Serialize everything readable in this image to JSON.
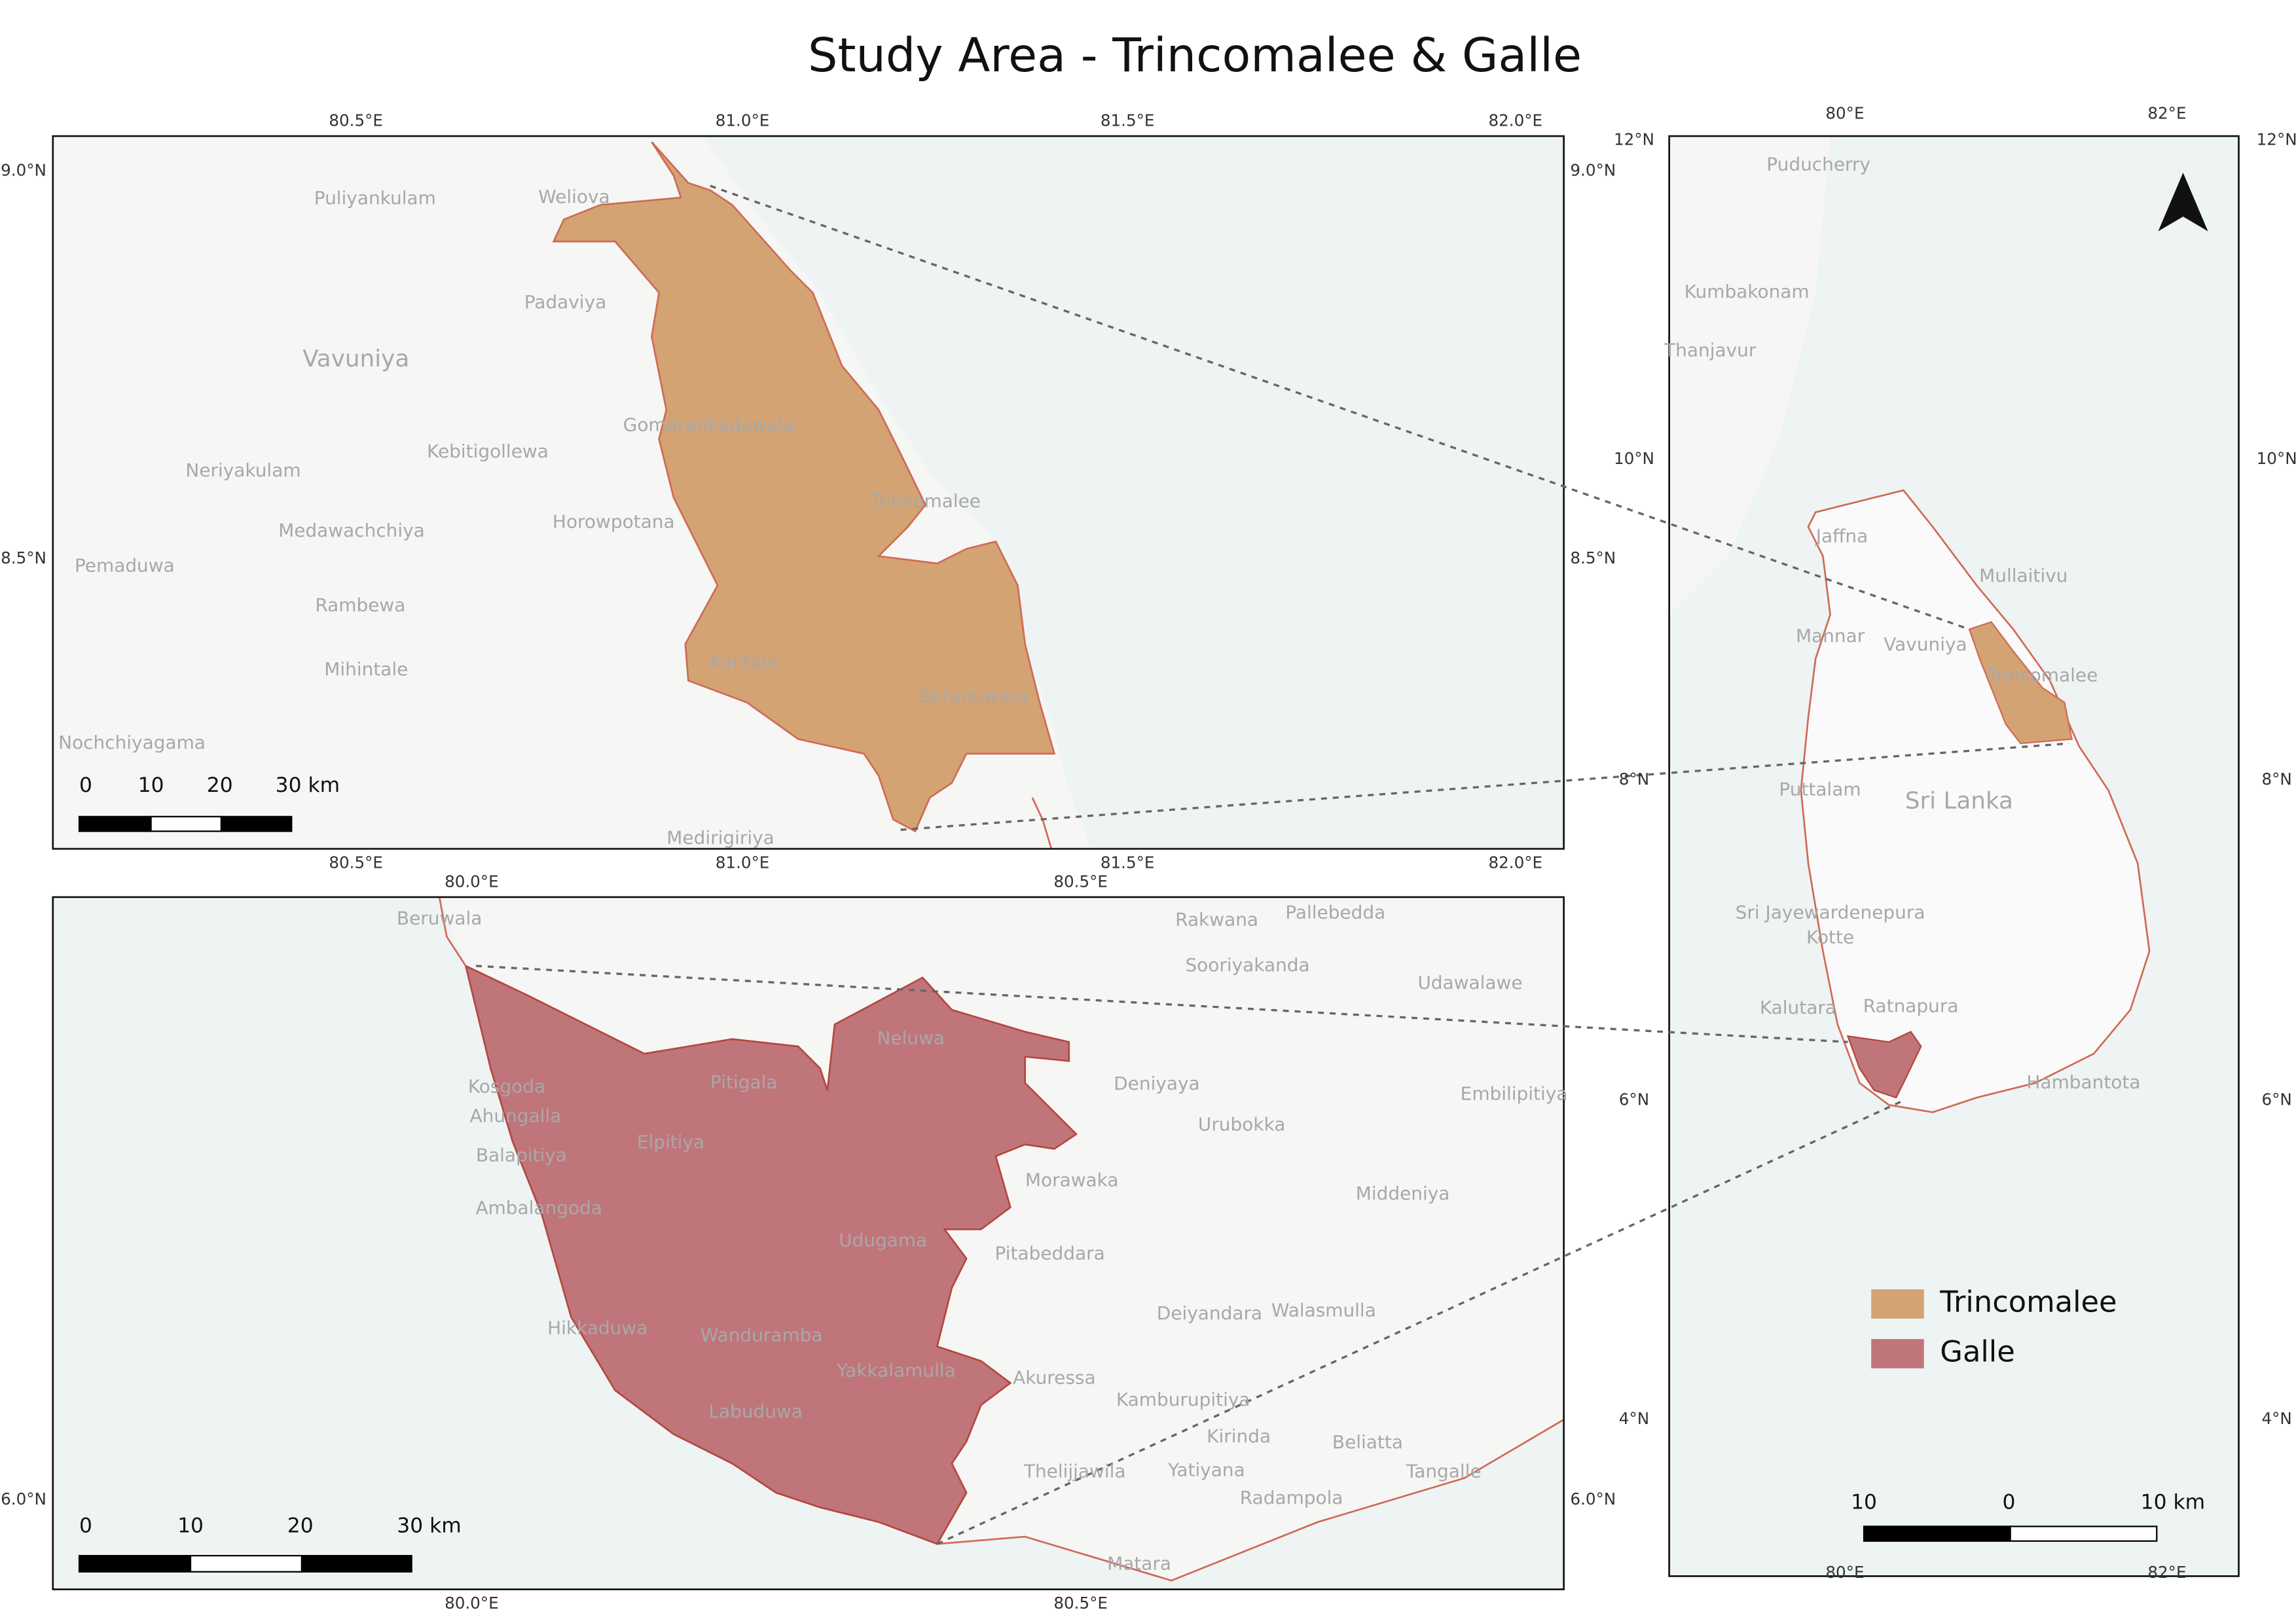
{
  "title": "Study Area - Trincomalee & Galle",
  "maps": [
    {
      "top_ticks": [
        "80.5°E",
        "81.0°E",
        "81.5°E",
        "82.0°E"
      ],
      "bottom_ticks": [
        "80.5°E",
        "81.0°E",
        "81.5°E",
        "82.0°E"
      ],
      "side_ticks": [
        "9.0°N",
        "8.5°N"
      ],
      "places": [
        "Puliyankulam",
        "Weliova",
        "Padaviya",
        "Vavuniya",
        "Gomarankadawala",
        "Kebitigollewa",
        "Neriyakulam",
        "Trincomalee",
        "Medawachchiya",
        "Horowpotana",
        "Pemaduwa",
        "Rambewa",
        "Mihintale",
        "Kantale",
        "Serunuwara",
        "Nochchiyagama",
        "Medirigiriya"
      ],
      "scale_bar": [
        "0",
        "10",
        "20",
        "30 km"
      ]
    },
    {
      "top_ticks": [
        "80.0°E",
        "80.5°E"
      ],
      "bottom_ticks": [
        "80.0°E",
        "80.5°E"
      ],
      "side_ticks": [
        "6.0°N"
      ],
      "places": [
        "Beruwala",
        "Rakwana",
        "Pallebedda",
        "Sooriyakanda",
        "Udawalawe",
        "Neluwa",
        "Pitigala",
        "Deniyaya",
        "Kosgoda",
        "Ahungalla",
        "Elpitiya",
        "Urubokka",
        "Balapitiya",
        "Morawaka",
        "Ambalangoda",
        "Udugama",
        "Pitabeddara",
        "Hikkaduwa",
        "Wanduramba",
        "Yakkalamulla",
        "Akuressa",
        "Labuduwa",
        "Deiyandara",
        "Walasmulla",
        "Kamburupitiya",
        "Kirinda",
        "Beliatta",
        "Thelijjawila",
        "Yatiyana",
        "Tangalle",
        "Radampola",
        "Matara",
        "Embilipitiya",
        "Middeniya"
      ],
      "scale_bar": [
        "0",
        "10",
        "20",
        "30 km"
      ]
    },
    {
      "top_ticks": [
        "80°E",
        "82°E"
      ],
      "bottom_ticks": [
        "80°E",
        "82°E"
      ],
      "side_ticks": [
        "12°N",
        "10°N",
        "8°N",
        "6°N",
        "4°N"
      ],
      "places": [
        "Puducherry",
        "Kumbakonam",
        "Thanjavur",
        "Jaffna",
        "Mullaitivu",
        "Mannar",
        "Vavuniya",
        "Trincomalee",
        "Puttalam",
        "Sri Lanka",
        "Sri Jayewardenepura",
        "Kotte",
        "Kalutara",
        "Ratnapura",
        "Hambantota"
      ],
      "scale_bar": [
        "10",
        "0",
        "10 km"
      ]
    }
  ],
  "legend": [
    {
      "label": "Trincomalee",
      "color": "#d4a373"
    },
    {
      "label": "Galle",
      "color": "#c0757a"
    }
  ]
}
